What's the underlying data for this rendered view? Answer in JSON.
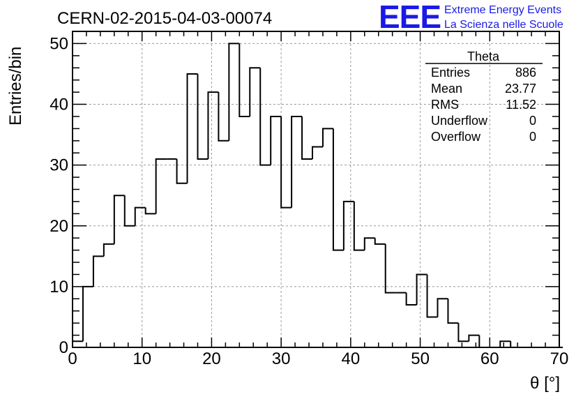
{
  "header": {
    "run_title": "CERN-02-2015-04-03-00074",
    "logo_mark": "EEE",
    "logo_line1": "Extreme Energy Events",
    "logo_line2": "La Scienza nelle Scuole",
    "logo_color": "#1a1ae6"
  },
  "stats": {
    "title": "Theta",
    "rows": [
      {
        "label": "Entries",
        "value": "886"
      },
      {
        "label": "Mean",
        "value": "23.77"
      },
      {
        "label": "RMS",
        "value": "11.52"
      },
      {
        "label": "Underflow",
        "value": "0"
      },
      {
        "label": "Overflow",
        "value": "0"
      }
    ]
  },
  "chart_data": {
    "type": "bar",
    "histogram": true,
    "title": "CERN-02-2015-04-03-00074",
    "xlabel": "θ [°]",
    "ylabel": "Entries/bin",
    "xlim": [
      0,
      70
    ],
    "ylim": [
      0,
      52
    ],
    "grid": true,
    "bin_width": 1.5,
    "bin_start": 0,
    "values": [
      1,
      10,
      15,
      17,
      25,
      20,
      23,
      22,
      31,
      31,
      27,
      45,
      31,
      42,
      34,
      50,
      38,
      46,
      30,
      38,
      23,
      38,
      31,
      33,
      36,
      16,
      24,
      16,
      18,
      17,
      9,
      9,
      7,
      12,
      5,
      8,
      4,
      1,
      2,
      0,
      0,
      1,
      0,
      0,
      0,
      0,
      0
    ],
    "x_ticks": [
      0,
      10,
      20,
      30,
      40,
      50,
      60,
      70
    ],
    "y_ticks": [
      0,
      10,
      20,
      30,
      40,
      50
    ],
    "line_color": "#000000"
  }
}
